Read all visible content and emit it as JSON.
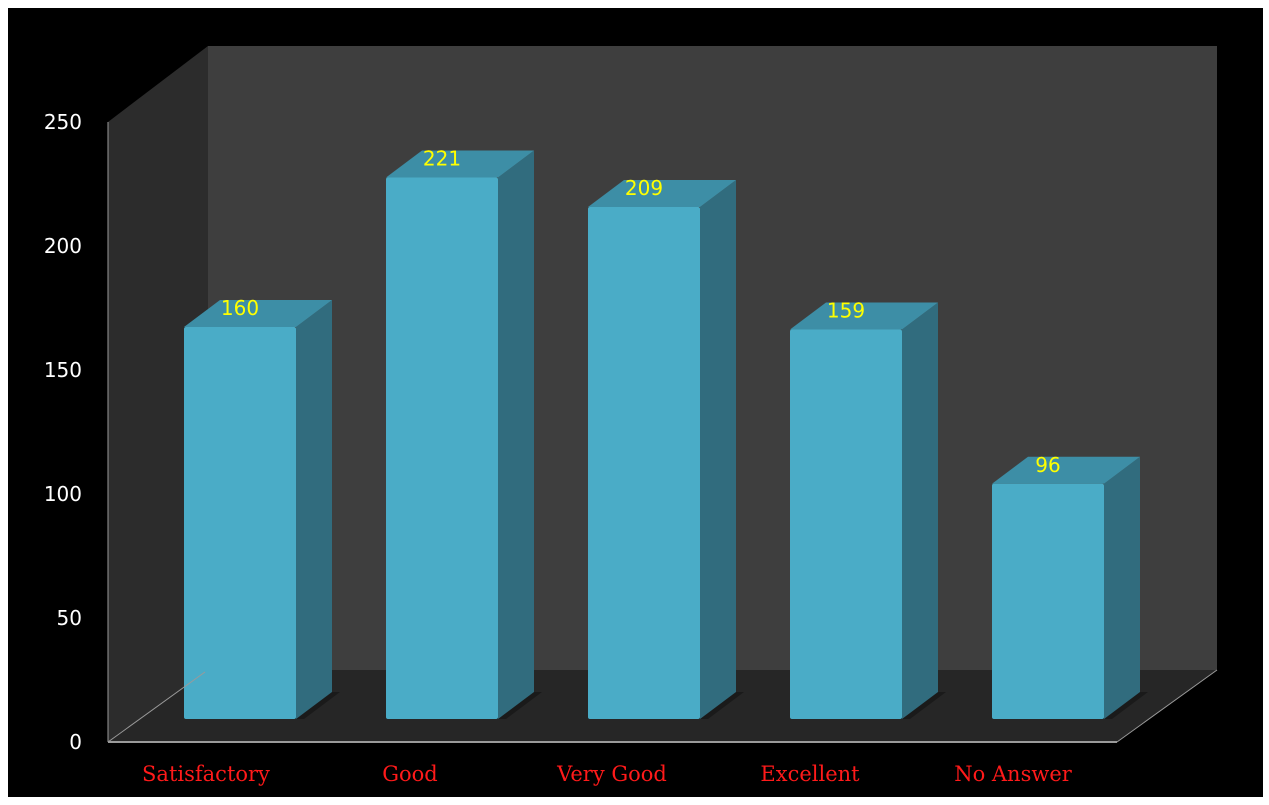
{
  "chart_data": {
    "type": "bar",
    "categories": [
      "Satisfactory",
      "Good",
      "Very Good",
      "Excellent",
      "No Answer"
    ],
    "values": [
      160,
      221,
      209,
      159,
      96
    ],
    "data_labels": [
      "160",
      "221",
      "209",
      "159",
      "96"
    ],
    "yticks": [
      "0",
      "50",
      "100",
      "150",
      "200",
      "250"
    ],
    "ylim": [
      0,
      250
    ],
    "title": "",
    "xlabel": "",
    "ylabel": "",
    "grid": false,
    "legend": "none",
    "style": "3d-columns"
  },
  "colors": {
    "background": "#000000",
    "back_wall": "#3e3e3e",
    "side_wall": "#2c2c2c",
    "floor": "#262626",
    "bar_front": "#4aacc7",
    "bar_top": "#3d8ea6",
    "bar_side": "#316c7e",
    "category_label": "#ff1a1a",
    "data_label": "#ffff00",
    "axis_line": "#9a9a9a"
  }
}
